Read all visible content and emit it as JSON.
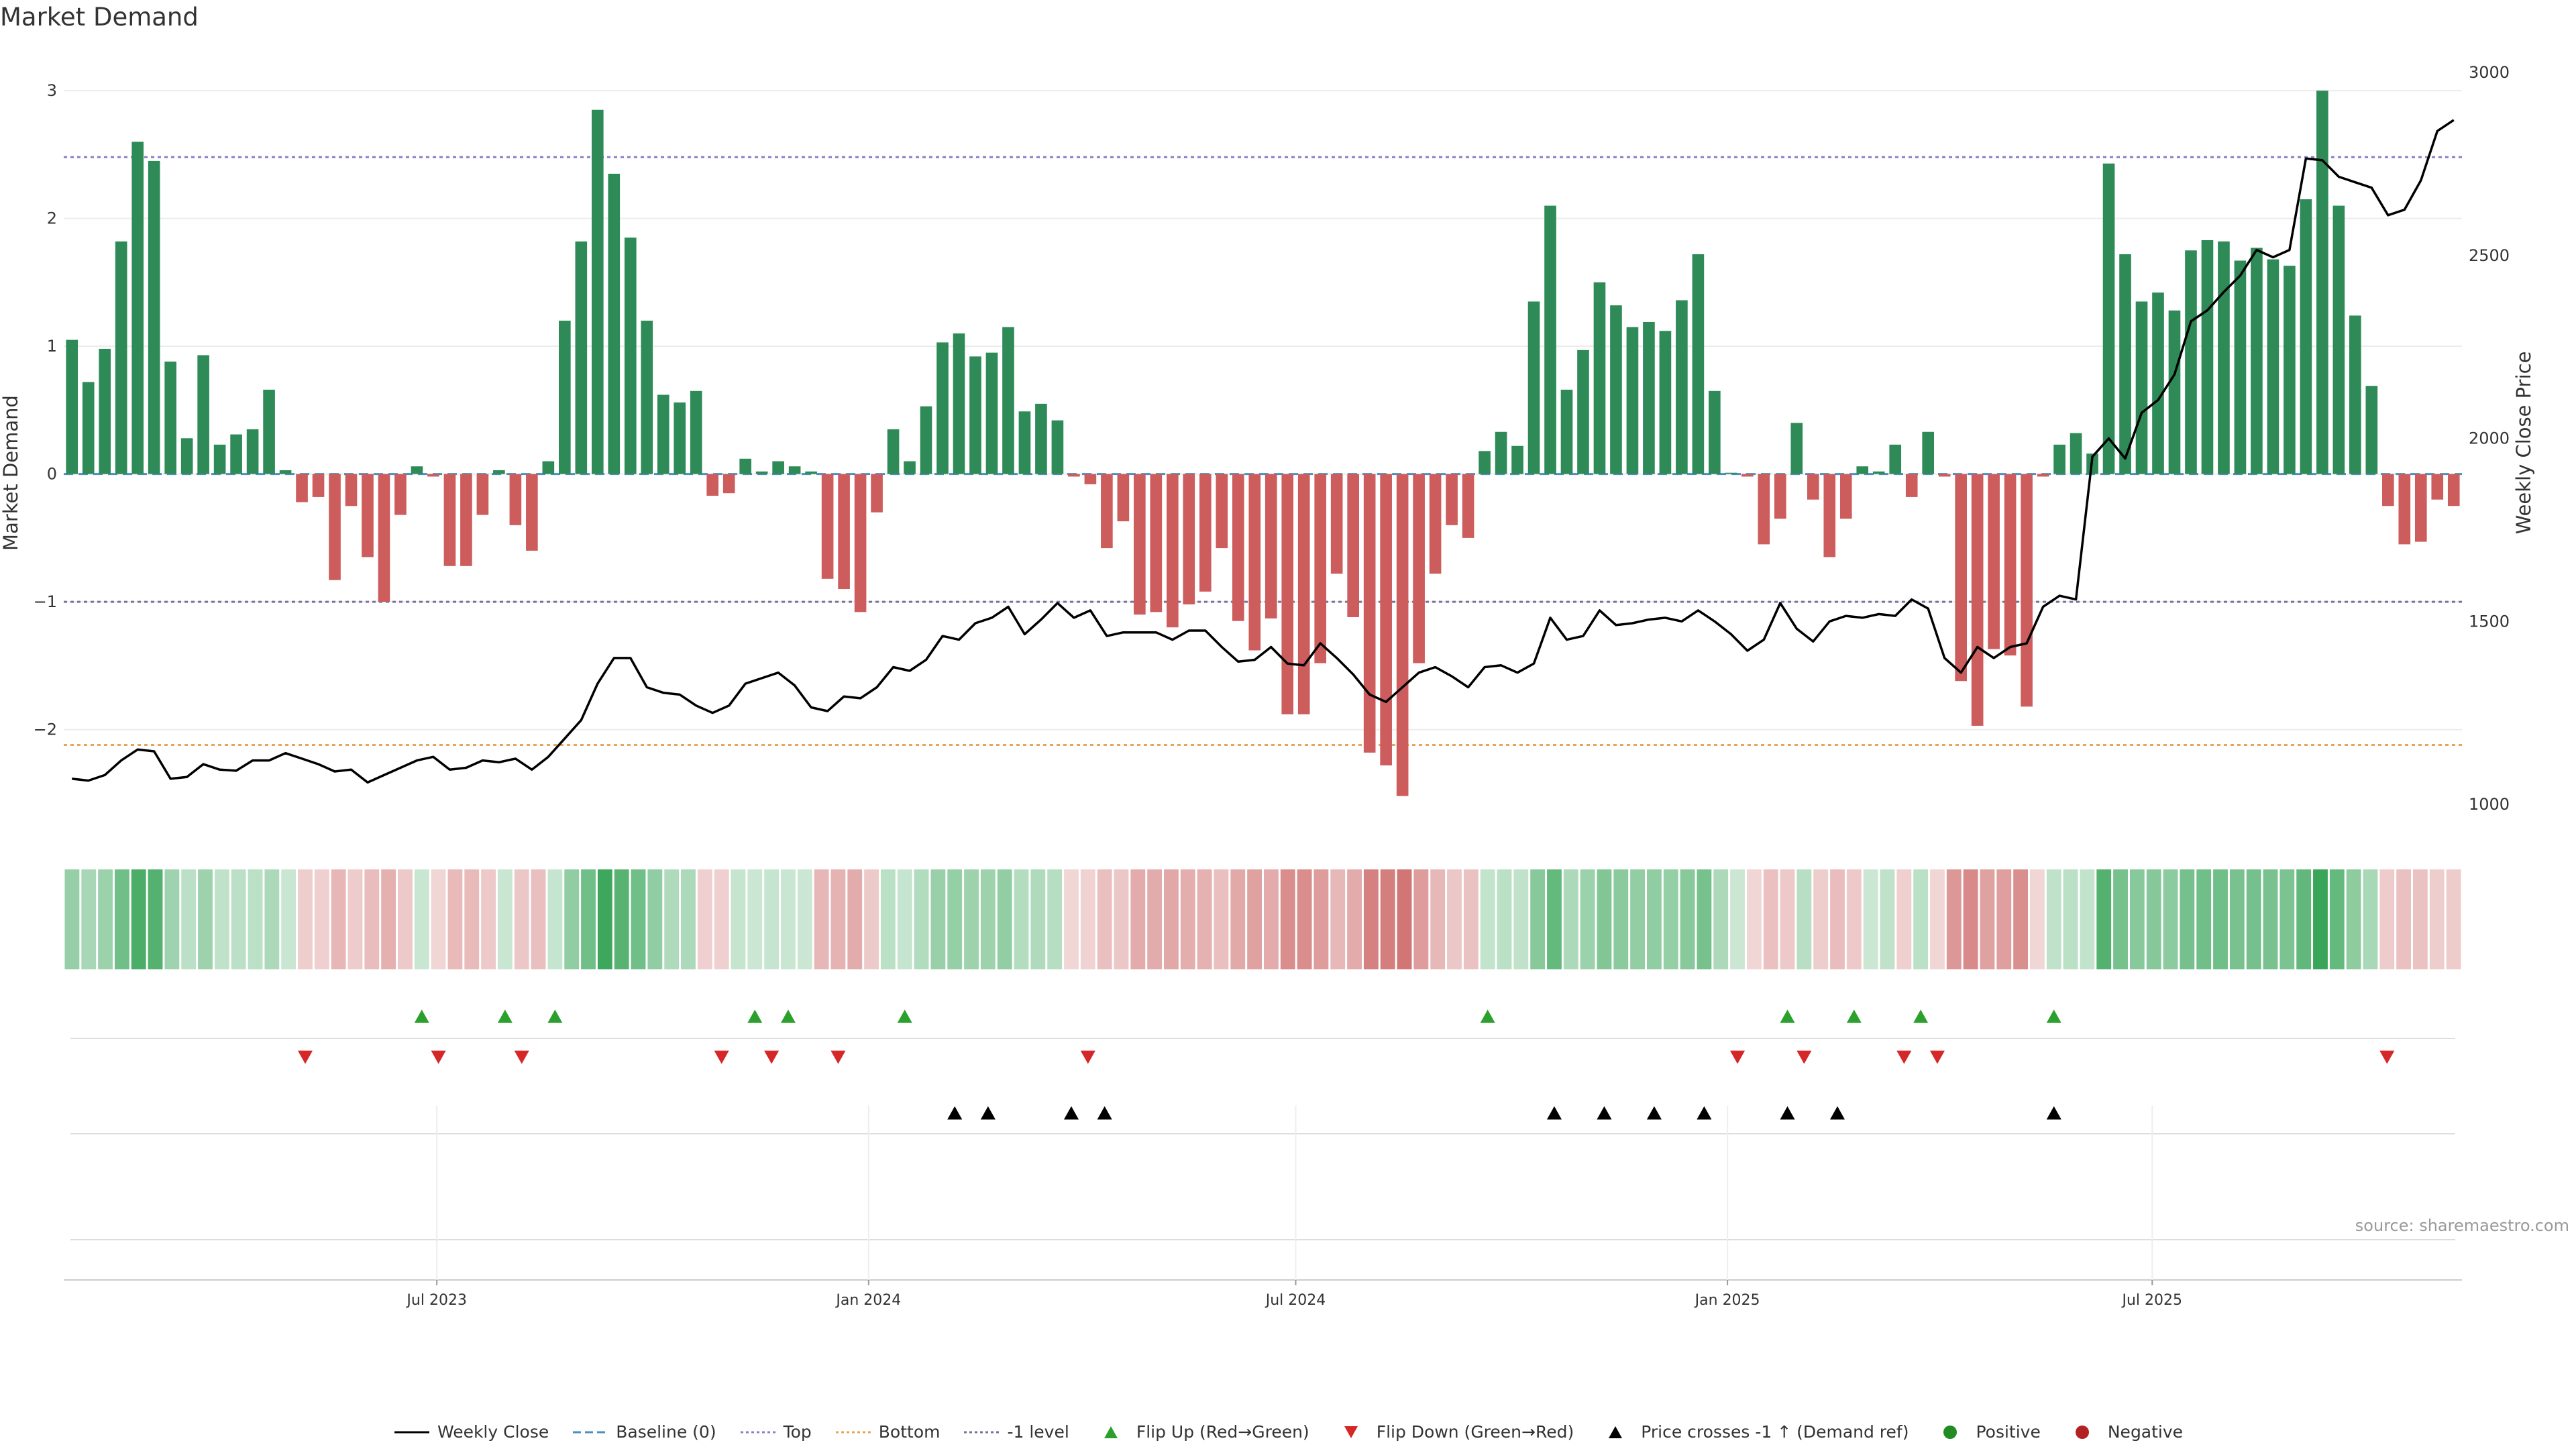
{
  "page": {
    "title": "Market Demand",
    "source": "source: sharemaestro.com"
  },
  "chart_data": {
    "type": "bar",
    "title": "Market Demand",
    "ylabel": "Market Demand",
    "y2label": "Weekly Close Price",
    "ylim": [
      -2.8,
      3.3
    ],
    "y2lim": [
      925,
      3055
    ],
    "yticks": [
      -2,
      -1,
      0,
      1,
      2,
      3
    ],
    "y2ticks": [
      1000,
      1500,
      2000,
      2500,
      3000
    ],
    "reference_lines": {
      "top": 2.48,
      "bottom": -2.12,
      "minus_one": -1,
      "baseline": 0
    },
    "colors": {
      "positive": "#2e8b57",
      "negative": "#cd5c5c",
      "close": "#000000",
      "top": "#8a7fc8",
      "bottom": "#e8a55a",
      "minus_one": "#7d6f9a",
      "baseline": "#4a90c2",
      "flip_up": "#2ca02c",
      "flip_down": "#d62728",
      "cross": "#000000",
      "pos_dot": "#228b22",
      "neg_dot": "#b22222"
    },
    "start_date": "2023-01-23",
    "date_ticks": [
      {
        "label": "Jul 2023",
        "date": "2023-07-01"
      },
      {
        "label": "Jan 2024",
        "date": "2024-01-01"
      },
      {
        "label": "Jul 2024",
        "date": "2024-07-01"
      },
      {
        "label": "Jan 2025",
        "date": "2025-01-01"
      },
      {
        "label": "Jul 2025",
        "date": "2025-07-01"
      }
    ],
    "demand": [
      1.05,
      0.72,
      0.98,
      1.82,
      2.6,
      2.45,
      0.88,
      0.28,
      0.93,
      0.23,
      0.31,
      0.35,
      0.66,
      0.03,
      -0.22,
      -0.18,
      -0.83,
      -0.25,
      -0.65,
      -1.0,
      -0.32,
      0.06,
      -0.02,
      -0.72,
      -0.72,
      -0.32,
      0.03,
      -0.4,
      -0.6,
      0.1,
      1.2,
      1.82,
      2.85,
      2.35,
      1.85,
      1.2,
      0.62,
      0.56,
      0.65,
      -0.17,
      -0.15,
      0.12,
      0.02,
      0.1,
      0.06,
      0.02,
      -0.82,
      -0.9,
      -1.08,
      -0.3,
      0.35,
      0.1,
      0.53,
      1.03,
      1.1,
      0.92,
      0.95,
      1.15,
      0.49,
      0.55,
      0.42,
      -0.02,
      -0.08,
      -0.58,
      -0.37,
      -1.1,
      -1.08,
      -1.2,
      -1.02,
      -0.92,
      -0.58,
      -1.15,
      -1.38,
      -1.13,
      -1.88,
      -1.88,
      -1.48,
      -0.78,
      -1.12,
      -2.18,
      -2.28,
      -2.52,
      -1.48,
      -0.78,
      -0.4,
      -0.5,
      0.18,
      0.33,
      0.22,
      1.35,
      2.1,
      0.66,
      0.97,
      1.5,
      1.32,
      1.15,
      1.19,
      1.12,
      1.36,
      1.72,
      0.65,
      0.01,
      -0.02,
      -0.55,
      -0.35,
      0.4,
      -0.2,
      -0.65,
      -0.35,
      0.06,
      0.02,
      0.23,
      -0.18,
      0.33,
      -0.02,
      -1.62,
      -1.97,
      -1.37,
      -1.42,
      -1.82,
      -0.02,
      0.23,
      0.32,
      0.16,
      2.43,
      1.72,
      1.35,
      1.42,
      1.28,
      1.75,
      1.83,
      1.82,
      1.67,
      1.77,
      1.68,
      1.63,
      2.15,
      3.0,
      2.1,
      1.24,
      0.69,
      -0.25,
      -0.55,
      -0.53,
      -0.2,
      -0.25
    ],
    "close": [
      1070,
      1065,
      1080,
      1120,
      1150,
      1145,
      1070,
      1075,
      1110,
      1095,
      1092,
      1120,
      1120,
      1140,
      1125,
      1110,
      1090,
      1095,
      1060,
      1080,
      1100,
      1120,
      1130,
      1095,
      1100,
      1120,
      1115,
      1125,
      1095,
      1130,
      1180,
      1230,
      1330,
      1400,
      1400,
      1320,
      1305,
      1300,
      1270,
      1250,
      1270,
      1330,
      1345,
      1360,
      1325,
      1265,
      1255,
      1295,
      1290,
      1320,
      1375,
      1365,
      1395,
      1460,
      1450,
      1495,
      1510,
      1540,
      1465,
      1505,
      1550,
      1510,
      1530,
      1460,
      1470,
      1470,
      1470,
      1450,
      1475,
      1475,
      1430,
      1390,
      1395,
      1430,
      1385,
      1380,
      1440,
      1400,
      1355,
      1300,
      1280,
      1320,
      1360,
      1375,
      1350,
      1320,
      1375,
      1380,
      1360,
      1385,
      1510,
      1450,
      1460,
      1530,
      1490,
      1495,
      1505,
      1510,
      1500,
      1530,
      1500,
      1465,
      1420,
      1450,
      1550,
      1480,
      1445,
      1500,
      1515,
      1510,
      1520,
      1515,
      1560,
      1535,
      1400,
      1360,
      1430,
      1400,
      1430,
      1440,
      1540,
      1570,
      1560,
      1950,
      2000,
      1945,
      2070,
      2105,
      2175,
      2320,
      2350,
      2400,
      2445,
      2515,
      2495,
      2515,
      2765,
      2760,
      2715,
      2700,
      2685,
      2610,
      2625,
      2705,
      2840,
      2870
    ],
    "heat_cells": 144,
    "signals": {
      "flip_up": [
        21,
        26,
        29,
        41,
        43,
        50,
        85,
        103,
        107,
        111,
        119
      ],
      "flip_down": [
        14,
        22,
        27,
        39,
        42,
        46,
        61,
        100,
        104,
        110,
        112,
        139
      ],
      "price_cross": [
        53,
        55,
        60,
        62,
        89,
        92,
        95,
        98,
        103,
        106,
        119
      ]
    },
    "legend": [
      {
        "label": "Weekly Close",
        "kind": "line-solid",
        "color": "#000000"
      },
      {
        "label": "Baseline (0)",
        "kind": "line-dash",
        "color": "#4a90c2"
      },
      {
        "label": "Top",
        "kind": "line-dot",
        "color": "#8a7fc8"
      },
      {
        "label": "Bottom",
        "kind": "line-dot",
        "color": "#e8a55a"
      },
      {
        "label": "-1 level",
        "kind": "line-dot",
        "color": "#7d6f9a"
      },
      {
        "label": "Flip Up (Red→Green)",
        "kind": "tri-up",
        "color": "#2ca02c"
      },
      {
        "label": "Flip Down (Green→Red)",
        "kind": "tri-down",
        "color": "#d62728"
      },
      {
        "label": "Price crosses -1 ↑ (Demand ref)",
        "kind": "tri-up",
        "color": "#000000"
      },
      {
        "label": "Positive",
        "kind": "dot",
        "color": "#228b22"
      },
      {
        "label": "Negative",
        "kind": "dot",
        "color": "#b22222"
      }
    ]
  }
}
